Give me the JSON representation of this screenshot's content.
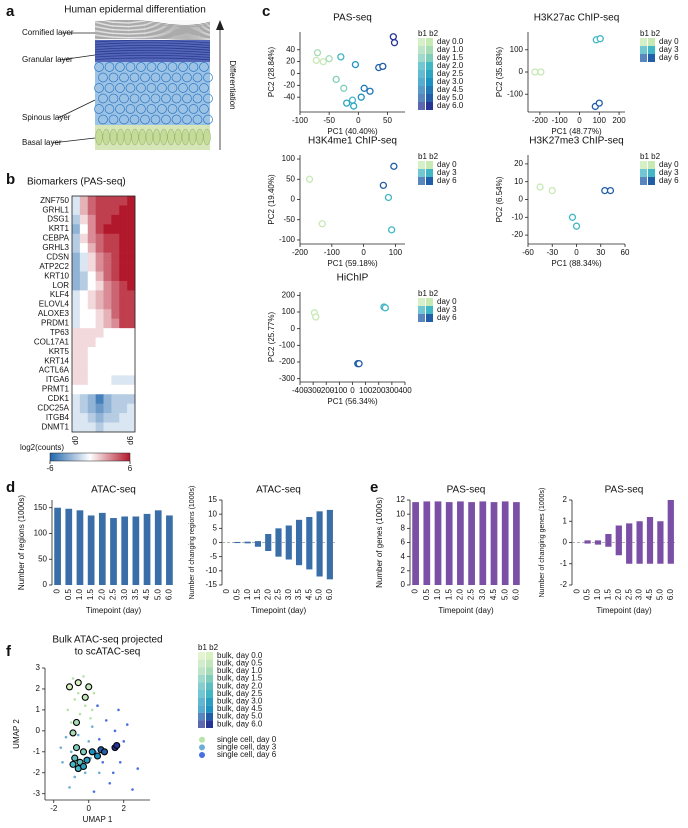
{
  "panels": {
    "letters": [
      "a",
      "b",
      "c",
      "d",
      "e",
      "f"
    ],
    "illustration": {
      "title": "Human epidermal differentiation",
      "layers": [
        "Cornified layer",
        "Granular layer",
        "Spinous layer",
        "Basal layer"
      ],
      "arrow_label": "Differentiation"
    }
  },
  "chart_data": [
    {
      "type": "heatmap",
      "title": "Biomarkers (PAS-seq)",
      "rows": [
        "ZNF750",
        "GRHL1",
        "DSG1",
        "KRT1",
        "CEBPA",
        "GRHL3",
        "CDSN",
        "ATP2C2",
        "KRT10",
        "LOR",
        "KLF4",
        "ELOVL4",
        "ALOXE3",
        "PRDM1",
        "TP63",
        "COL17A1",
        "KRT5",
        "KRT14",
        "ACTL6A",
        "ITGA6",
        "PRMT1",
        "CDK1",
        "CDC25A",
        "ITGB4",
        "DNMT1"
      ],
      "columns": [
        "d0",
        null,
        null,
        null,
        null,
        null,
        null,
        "d6"
      ],
      "values": [
        [
          -1,
          2,
          4,
          5,
          5,
          5,
          5,
          6
        ],
        [
          -1,
          2,
          4,
          5,
          5,
          5,
          6,
          6
        ],
        [
          -2,
          1,
          3,
          5,
          5,
          6,
          6,
          6
        ],
        [
          -3,
          0,
          3,
          5,
          6,
          6,
          6,
          6
        ],
        [
          -2,
          1,
          3,
          4,
          5,
          5,
          6,
          6
        ],
        [
          -2,
          0,
          2,
          4,
          5,
          5,
          6,
          6
        ],
        [
          -3,
          -1,
          1,
          3,
          4,
          5,
          6,
          6
        ],
        [
          -3,
          -1,
          1,
          3,
          4,
          5,
          6,
          6
        ],
        [
          -3,
          -2,
          0,
          2,
          4,
          5,
          6,
          6
        ],
        [
          -3,
          -2,
          0,
          1,
          3,
          4,
          5,
          6
        ],
        [
          -1,
          0,
          1,
          2,
          3,
          4,
          5,
          5
        ],
        [
          -1,
          0,
          1,
          2,
          3,
          4,
          5,
          5
        ],
        [
          -1,
          0,
          0,
          1,
          2,
          4,
          5,
          5
        ],
        [
          -1,
          0,
          0,
          1,
          2,
          3,
          5,
          5
        ],
        [
          1,
          1,
          1,
          1,
          0,
          0,
          0,
          0
        ],
        [
          1,
          1,
          1,
          0,
          0,
          0,
          0,
          0
        ],
        [
          1,
          1,
          0,
          0,
          0,
          0,
          0,
          0
        ],
        [
          1,
          1,
          0,
          0,
          0,
          0,
          0,
          0
        ],
        [
          1,
          1,
          0,
          0,
          0,
          0,
          0,
          0
        ],
        [
          1,
          1,
          0,
          0,
          0,
          -1,
          -1,
          -1
        ],
        [
          0,
          0,
          0,
          0,
          0,
          0,
          0,
          0
        ],
        [
          -1,
          -2,
          -3,
          -5,
          -3,
          -2,
          -2,
          -2
        ],
        [
          -1,
          -2,
          -3,
          -4,
          -3,
          -2,
          -2,
          -1
        ],
        [
          -1,
          -1,
          -2,
          -3,
          -2,
          -2,
          -1,
          -1
        ],
        [
          -1,
          -1,
          -1,
          -2,
          -1,
          -1,
          -1,
          -1
        ]
      ],
      "vlim": [
        -6,
        6
      ],
      "colors": [
        "#2166ac",
        "#ffffff",
        "#b2182b"
      ],
      "colorbar": {
        "label": "log2(counts)",
        "ticks": [
          -6,
          6
        ]
      }
    },
    {
      "type": "scatter",
      "title": "PAS-seq",
      "xlabel": "PC1 (40.40%)",
      "ylabel": "PC2 (28.84%)",
      "legend_title": "b1 b2",
      "xlim": [
        -100,
        80
      ],
      "xticks": [
        -100,
        -50,
        0,
        50
      ],
      "ylim": [
        -65,
        70
      ],
      "yticks": [
        -40,
        -20,
        0,
        20,
        40
      ],
      "marker": "ring",
      "series": [
        {
          "name": "day 0.0",
          "color": "#c7e9b4",
          "x": [
            -72,
            -60
          ],
          "y": [
            22,
            20
          ]
        },
        {
          "name": "day 1.0",
          "color": "#a8dcb5",
          "x": [
            -70,
            -50
          ],
          "y": [
            35,
            25
          ]
        },
        {
          "name": "day 1.5",
          "color": "#7fcdbb",
          "x": [
            -38,
            -25
          ],
          "y": [
            -10,
            -25
          ]
        },
        {
          "name": "day 2.0",
          "color": "#41b6c4",
          "x": [
            -30,
            -10
          ],
          "y": [
            28,
            -45
          ]
        },
        {
          "name": "day 2.5",
          "color": "#2ca5c2",
          "x": [
            -20,
            -8
          ],
          "y": [
            -50,
            -55
          ]
        },
        {
          "name": "day 3.0",
          "color": "#1d91c0",
          "x": [
            -5,
            5
          ],
          "y": [
            15,
            -40
          ]
        },
        {
          "name": "day 4.5",
          "color": "#2278b5",
          "x": [
            10,
            20
          ],
          "y": [
            -25,
            -30
          ]
        },
        {
          "name": "day 5.0",
          "color": "#225ea8",
          "x": [
            35,
            42
          ],
          "y": [
            10,
            12
          ]
        },
        {
          "name": "day 6.0",
          "color": "#253494",
          "x": [
            60,
            62
          ],
          "y": [
            62,
            52
          ]
        }
      ]
    },
    {
      "type": "scatter",
      "title": "H3K27ac ChIP-seq",
      "xlabel": "PC1 (48.77%)",
      "ylabel": "PC2 (35.83%)",
      "legend_title": "b1 b2",
      "xlim": [
        -260,
        230
      ],
      "xticks": [
        -200,
        -100,
        0,
        100,
        200
      ],
      "ylim": [
        -180,
        180
      ],
      "yticks": [
        -100,
        0,
        100
      ],
      "marker": "ring",
      "series": [
        {
          "name": "day 0",
          "color": "#c7e9b4",
          "x": [
            -225,
            -195
          ],
          "y": [
            0,
            0
          ]
        },
        {
          "name": "day 3",
          "color": "#41b6c4",
          "x": [
            85,
            105
          ],
          "y": [
            145,
            150
          ]
        },
        {
          "name": "day 6",
          "color": "#225ea8",
          "x": [
            80,
            100
          ],
          "y": [
            -155,
            -140
          ]
        }
      ]
    },
    {
      "type": "scatter",
      "title": "H3K4me1 ChIP-seq",
      "xlabel": "PC1 (59.18%)",
      "ylabel": "PC2 (19.40%)",
      "legend_title": "b1 b2",
      "xlim": [
        -200,
        130
      ],
      "xticks": [
        -200,
        -100,
        0,
        100
      ],
      "ylim": [
        -110,
        110
      ],
      "yticks": [
        -100,
        -50,
        0,
        50,
        100
      ],
      "marker": "ring",
      "series": [
        {
          "name": "day 0",
          "color": "#c7e9b4",
          "x": [
            -170,
            -130
          ],
          "y": [
            50,
            -60
          ]
        },
        {
          "name": "day 3",
          "color": "#41b6c4",
          "x": [
            78,
            88
          ],
          "y": [
            5,
            -75
          ]
        },
        {
          "name": "day 6",
          "color": "#225ea8",
          "x": [
            62,
            95
          ],
          "y": [
            35,
            82
          ]
        }
      ]
    },
    {
      "type": "scatter",
      "title": "H3K27me3 ChIP-seq",
      "xlabel": "PC1 (88.34%)",
      "ylabel": "PC2 (6.54%)",
      "legend_title": "b1 b2",
      "xlim": [
        -60,
        60
      ],
      "xticks": [
        -60,
        -30,
        0,
        30,
        60
      ],
      "ylim": [
        -25,
        25
      ],
      "yticks": [
        -20,
        -10,
        0,
        10,
        20
      ],
      "marker": "ring",
      "series": [
        {
          "name": "day 0",
          "color": "#c7e9b4",
          "x": [
            -45,
            -30
          ],
          "y": [
            7,
            5
          ]
        },
        {
          "name": "day 3",
          "color": "#41b6c4",
          "x": [
            -5,
            0
          ],
          "y": [
            -10,
            -15
          ]
        },
        {
          "name": "day 6",
          "color": "#225ea8",
          "x": [
            35,
            42
          ],
          "y": [
            5,
            5
          ]
        }
      ]
    },
    {
      "type": "scatter",
      "title": "HiChIP",
      "xlabel": "PC1 (56.34%)",
      "ylabel": "PC2 (25.77%)",
      "legend_title": "b1 b2",
      "xlim": [
        -400,
        400
      ],
      "xticks": [
        -400,
        -300,
        -200,
        -100,
        0,
        100,
        200,
        300,
        400
      ],
      "ylim": [
        -320,
        220
      ],
      "yticks": [
        -300,
        -200,
        -100,
        0,
        100,
        200
      ],
      "marker": "ring",
      "series": [
        {
          "name": "day 0",
          "color": "#c7e9b4",
          "x": [
            -290,
            -280
          ],
          "y": [
            95,
            70
          ]
        },
        {
          "name": "day 3",
          "color": "#41b6c4",
          "x": [
            240,
            250
          ],
          "y": [
            130,
            125
          ]
        },
        {
          "name": "day 6",
          "color": "#225ea8",
          "x": [
            40,
            50
          ],
          "y": [
            -210,
            -210
          ]
        }
      ]
    },
    {
      "type": "bar",
      "title": "ATAC-seq",
      "xlabel": "Timepoint (day)",
      "ylabel": "Number of regions (1000s)",
      "categories": [
        "0",
        "0.5",
        "1.0",
        "1.5",
        "2.0",
        "2.5",
        "3.0",
        "3.5",
        "4.5",
        "5.0",
        "6.0"
      ],
      "ylim": [
        0,
        165
      ],
      "yticks": [
        0,
        50,
        100,
        150
      ],
      "series": [
        {
          "color": "#3a6ea8",
          "values": [
            150,
            148,
            145,
            135,
            140,
            130,
            133,
            133,
            138,
            145,
            135
          ]
        }
      ]
    },
    {
      "type": "bar",
      "title": "ATAC-seq",
      "xlabel": "Timepoint (day)",
      "ylabel": "Number of changing regions (1000s)",
      "categories": [
        "0",
        "0.5",
        "1.0",
        "1.5",
        "2.0",
        "2.5",
        "3.0",
        "3.5",
        "4.5",
        "5.0",
        "6.0"
      ],
      "ylim": [
        -15,
        15
      ],
      "yticks": [
        -15,
        -10,
        -5,
        0,
        5,
        10,
        15
      ],
      "zero_line": true,
      "series": [
        {
          "color": "#3a6ea8",
          "values": [
            0,
            0.2,
            0.3,
            0.5,
            3,
            5,
            6,
            8,
            9,
            11,
            11.5
          ]
        },
        {
          "color": "#3a6ea8",
          "values": [
            0,
            -0.2,
            -0.3,
            -1.5,
            -3,
            -5,
            -6,
            -8,
            -9.5,
            -12,
            -13
          ]
        }
      ]
    },
    {
      "type": "bar",
      "title": "PAS-seq",
      "xlabel": "Timepoint (day)",
      "ylabel": "Number of genes (1000s)",
      "categories": [
        "0",
        "0.5",
        "1.0",
        "1.5",
        "2.0",
        "2.5",
        "3.0",
        "4.5",
        "5.0",
        "6.0"
      ],
      "ylim": [
        0,
        12
      ],
      "yticks": [
        0,
        2,
        4,
        6,
        8,
        10,
        12
      ],
      "series": [
        {
          "color": "#7b4fa6",
          "values": [
            11.7,
            11.8,
            11.8,
            11.7,
            11.8,
            11.7,
            11.8,
            11.7,
            11.8,
            11.7
          ]
        }
      ]
    },
    {
      "type": "bar",
      "title": "PAS-seq",
      "xlabel": "Timepoint (day)",
      "ylabel": "Number of changing genes (1000s)",
      "categories": [
        "0",
        "0.5",
        "1.0",
        "1.5",
        "2.0",
        "2.5",
        "3.0",
        "4.5",
        "5.0",
        "6.0"
      ],
      "ylim": [
        -2,
        2
      ],
      "yticks": [
        -2,
        -1,
        0,
        1,
        2
      ],
      "zero_line": true,
      "series": [
        {
          "color": "#7b4fa6",
          "values": [
            0,
            0.1,
            0.1,
            0.4,
            0.8,
            0.9,
            1.0,
            1.2,
            1.0,
            2.0
          ]
        },
        {
          "color": "#7b4fa6",
          "values": [
            0,
            -0.05,
            -0.1,
            -0.2,
            -0.6,
            -1.0,
            -1.0,
            -1.0,
            -1.0,
            -1.0
          ]
        }
      ]
    },
    {
      "type": "scatter",
      "title_lines": [
        "Bulk ATAC-seq projected",
        "to scATAC-seq"
      ],
      "xlabel": "UMAP 1",
      "ylabel": "UMAP 2",
      "legend_title": "b1 b2",
      "xlim": [
        -2.5,
        3.5
      ],
      "xticks": [
        -2,
        0,
        2
      ],
      "ylim": [
        -3.3,
        3
      ],
      "yticks": [
        -3,
        -2,
        -1,
        0,
        1,
        2,
        3
      ],
      "marker": "ring",
      "series": [
        {
          "name": "bulk, day 0.0",
          "color": "#d9f0c0",
          "x": [
            -1.1,
            -0.6
          ],
          "y": [
            2.1,
            2.3
          ]
        },
        {
          "name": "bulk, day 0.5",
          "color": "#c2e6b9",
          "x": [
            0.0,
            -0.2
          ],
          "y": [
            2.1,
            1.6
          ]
        },
        {
          "name": "bulk, day 1.0",
          "color": "#a8dcb5",
          "x": [
            -0.7,
            -0.9
          ],
          "y": [
            0.4,
            -0.1
          ]
        },
        {
          "name": "bulk, day 1.5",
          "color": "#7fcdbb",
          "x": [
            -0.7,
            -0.3
          ],
          "y": [
            -0.8,
            -1.0
          ]
        },
        {
          "name": "bulk, day 2.0",
          "color": "#5fbcc0",
          "x": [
            -0.8,
            -0.5
          ],
          "y": [
            -1.3,
            -1.5
          ]
        },
        {
          "name": "bulk, day 2.5",
          "color": "#41b6c4",
          "x": [
            -0.9,
            -0.6
          ],
          "y": [
            -1.6,
            -1.8
          ]
        },
        {
          "name": "bulk, day 3.0",
          "color": "#2c9fc0",
          "x": [
            -0.3,
            -0.1
          ],
          "y": [
            -1.7,
            -1.4
          ]
        },
        {
          "name": "bulk, day 4.5",
          "color": "#1d91c0",
          "x": [
            0.2,
            0.5
          ],
          "y": [
            -1.0,
            -1.2
          ]
        },
        {
          "name": "bulk, day 5.0",
          "color": "#225ea8",
          "x": [
            0.7,
            0.9
          ],
          "y": [
            -0.9,
            -1.0
          ]
        },
        {
          "name": "bulk, day 6.0",
          "color": "#253494",
          "x": [
            1.5,
            1.6
          ],
          "y": [
            -0.8,
            -0.7
          ]
        },
        {
          "name": "single cell, day 0",
          "color": "#b8e3a8",
          "marker": "dot",
          "x": [
            -1,
            -0.5,
            0,
            -0.8,
            -0.2,
            0.3,
            -1.2,
            -0.5,
            0.1,
            -0.3,
            0.5,
            -1,
            -0.6,
            0.2,
            -0.9
          ],
          "y": [
            2,
            2.3,
            2,
            1.5,
            1.2,
            1.8,
            1,
            0.8,
            0.6,
            2.6,
            1.2,
            0.4,
            1.8,
            1,
            2.5
          ]
        },
        {
          "name": "single cell, day 3",
          "color": "#6baed6",
          "marker": "dot",
          "x": [
            -1,
            -0.5,
            0,
            -1.3,
            -0.2,
            0.4,
            -0.8,
            -1.5,
            0.1,
            -0.6,
            0.6,
            -1.1,
            -0.3,
            0.2,
            -1.6
          ],
          "y": [
            -1,
            -1.5,
            -0.5,
            -0.3,
            -2,
            -1,
            -2.2,
            -1.5,
            -1.3,
            -0.2,
            -2,
            -2.7,
            -1,
            0.2,
            -0.8
          ]
        },
        {
          "name": "single cell, day 6",
          "color": "#4a6fe3",
          "marker": "dot",
          "x": [
            1,
            1.5,
            2,
            0.8,
            1.2,
            2.5,
            1.8,
            0.5,
            2.2,
            1,
            1.4,
            0.3,
            2.8,
            1.7,
            0.6
          ],
          "y": [
            0.5,
            0,
            -0.5,
            -1.5,
            -2.5,
            -2.8,
            -1.5,
            1.2,
            0.3,
            -1,
            -2,
            -2.9,
            -1.8,
            1,
            -0.4
          ]
        }
      ]
    }
  ]
}
